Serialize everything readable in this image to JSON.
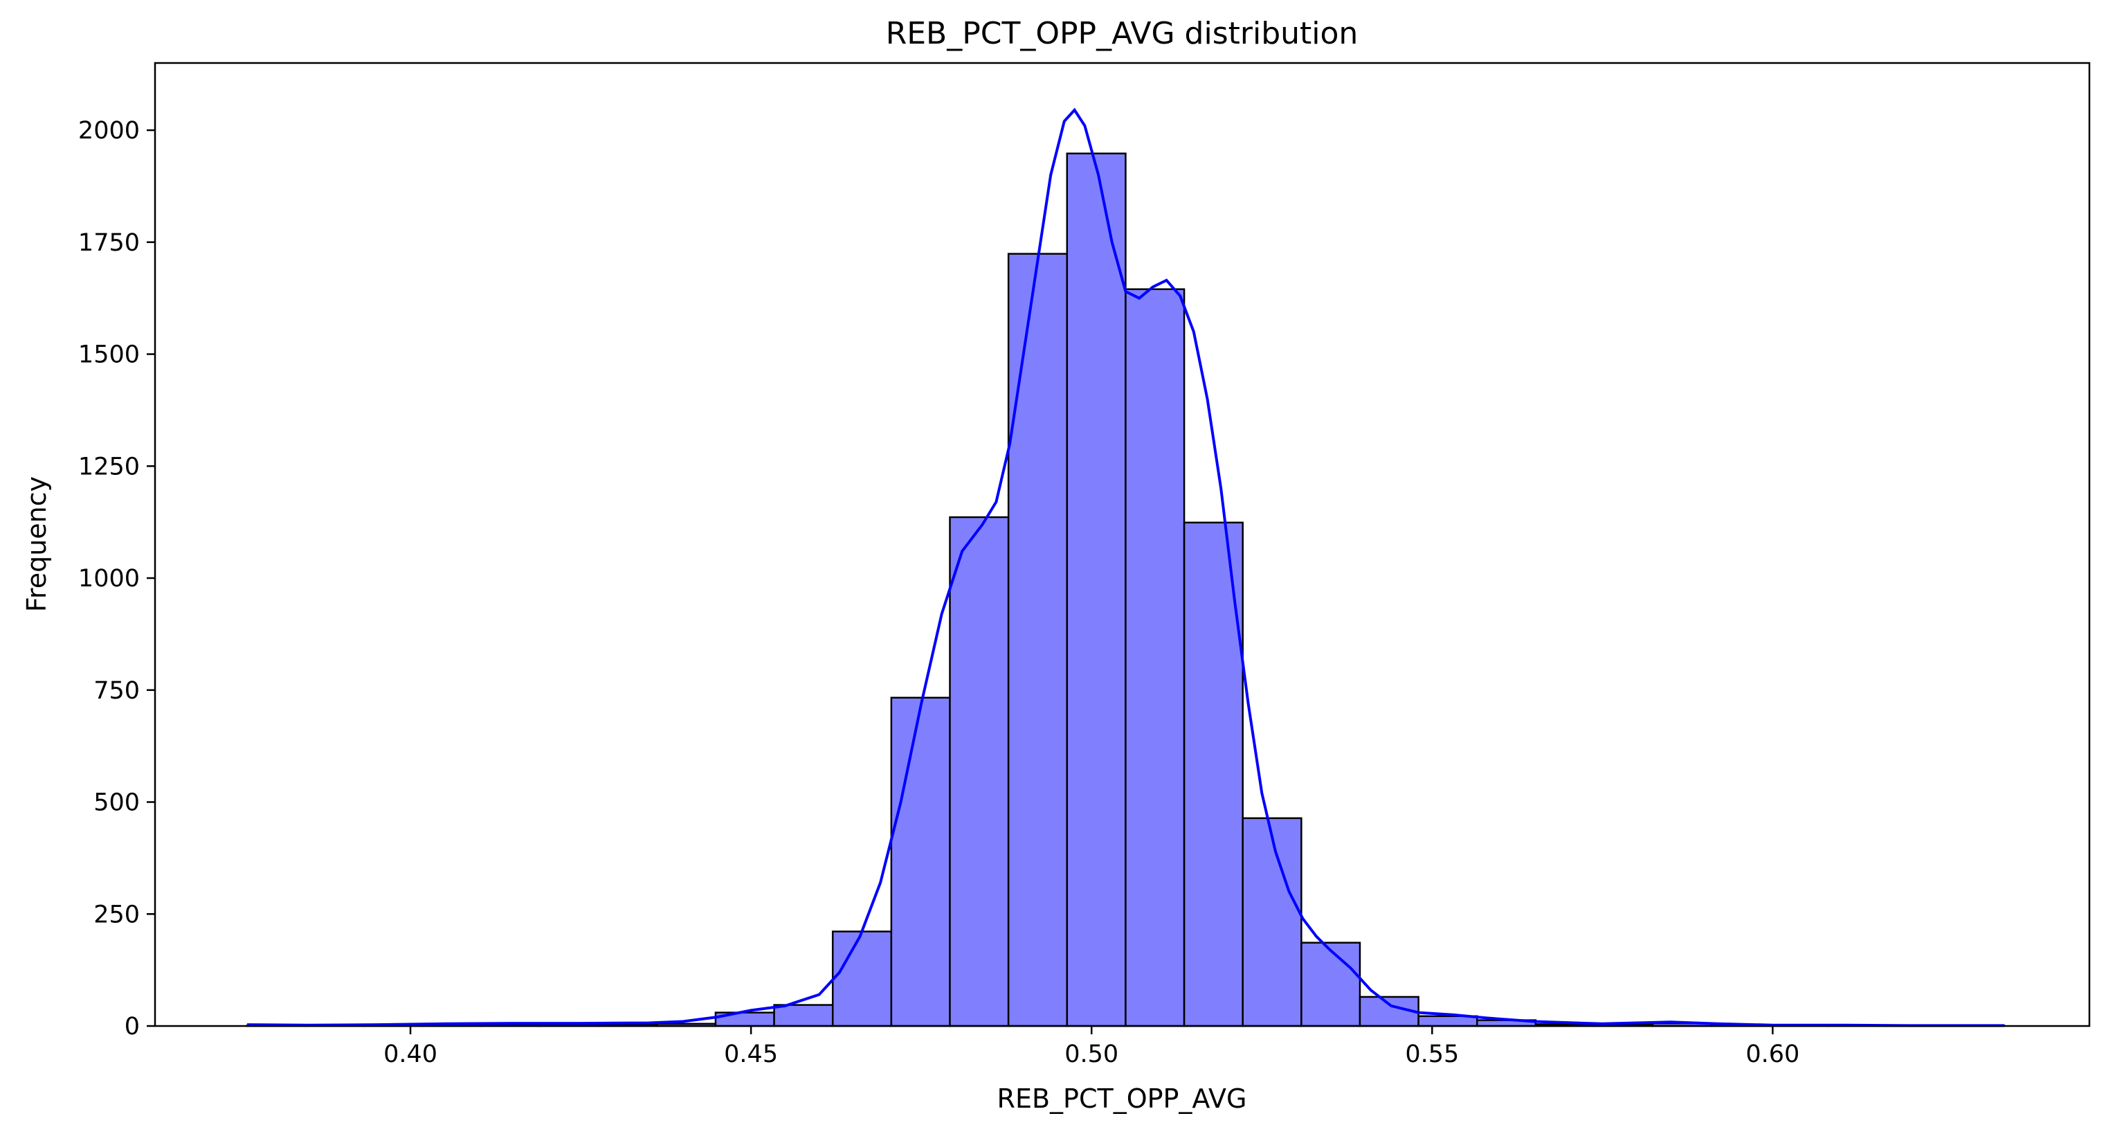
{
  "chart_data": {
    "type": "bar",
    "title": "REB_PCT_OPP_AVG distribution",
    "xlabel": "REB_PCT_OPP_AVG",
    "ylabel": "Frequency",
    "xlim": [
      0.3625,
      0.6465
    ],
    "ylim": [
      0,
      2150
    ],
    "xticks": [
      0.4,
      0.45,
      0.5,
      0.55,
      0.6
    ],
    "xtick_labels": [
      "0.40",
      "0.45",
      "0.50",
      "0.55",
      "0.60"
    ],
    "yticks": [
      0,
      250,
      500,
      750,
      1000,
      1250,
      1500,
      1750,
      2000
    ],
    "ytick_labels": [
      "0",
      "250",
      "500",
      "750",
      "1000",
      "1250",
      "1500",
      "1750",
      "2000"
    ],
    "bin_width": 0.0086,
    "bins": [
      {
        "x0": 0.376,
        "value": 1
      },
      {
        "x0": 0.3846,
        "value": 1
      },
      {
        "x0": 0.3932,
        "value": 1
      },
      {
        "x0": 0.4018,
        "value": 3
      },
      {
        "x0": 0.4104,
        "value": 3
      },
      {
        "x0": 0.419,
        "value": 4
      },
      {
        "x0": 0.4276,
        "value": 4
      },
      {
        "x0": 0.4362,
        "value": 5
      },
      {
        "x0": 0.4448,
        "value": 30
      },
      {
        "x0": 0.4534,
        "value": 47
      },
      {
        "x0": 0.462,
        "value": 211
      },
      {
        "x0": 0.4706,
        "value": 733
      },
      {
        "x0": 0.4792,
        "value": 1136
      },
      {
        "x0": 0.4878,
        "value": 1724
      },
      {
        "x0": 0.4964,
        "value": 1948
      },
      {
        "x0": 0.505,
        "value": 1645
      },
      {
        "x0": 0.5136,
        "value": 1124
      },
      {
        "x0": 0.5222,
        "value": 464
      },
      {
        "x0": 0.5308,
        "value": 186
      },
      {
        "x0": 0.5394,
        "value": 65
      },
      {
        "x0": 0.548,
        "value": 22
      },
      {
        "x0": 0.5566,
        "value": 13
      },
      {
        "x0": 0.5652,
        "value": 4
      },
      {
        "x0": 0.5738,
        "value": 3
      },
      {
        "x0": 0.5824,
        "value": 6
      },
      {
        "x0": 0.591,
        "value": 2
      },
      {
        "x0": 0.5996,
        "value": 1
      },
      {
        "x0": 0.6082,
        "value": 1
      },
      {
        "x0": 0.6168,
        "value": 1
      },
      {
        "x0": 0.6254,
        "value": 1
      }
    ],
    "kde": [
      [
        0.376,
        3
      ],
      [
        0.385,
        2
      ],
      [
        0.395,
        3
      ],
      [
        0.405,
        5
      ],
      [
        0.415,
        6
      ],
      [
        0.425,
        6
      ],
      [
        0.435,
        7
      ],
      [
        0.44,
        10
      ],
      [
        0.445,
        20
      ],
      [
        0.45,
        35
      ],
      [
        0.455,
        45
      ],
      [
        0.46,
        70
      ],
      [
        0.463,
        120
      ],
      [
        0.466,
        200
      ],
      [
        0.469,
        320
      ],
      [
        0.472,
        500
      ],
      [
        0.475,
        720
      ],
      [
        0.478,
        920
      ],
      [
        0.481,
        1060
      ],
      [
        0.484,
        1120
      ],
      [
        0.486,
        1170
      ],
      [
        0.488,
        1300
      ],
      [
        0.49,
        1500
      ],
      [
        0.492,
        1700
      ],
      [
        0.494,
        1900
      ],
      [
        0.496,
        2020
      ],
      [
        0.4975,
        2045
      ],
      [
        0.499,
        2010
      ],
      [
        0.501,
        1900
      ],
      [
        0.503,
        1750
      ],
      [
        0.505,
        1640
      ],
      [
        0.507,
        1625
      ],
      [
        0.509,
        1650
      ],
      [
        0.511,
        1665
      ],
      [
        0.513,
        1630
      ],
      [
        0.515,
        1550
      ],
      [
        0.517,
        1400
      ],
      [
        0.519,
        1200
      ],
      [
        0.521,
        950
      ],
      [
        0.523,
        720
      ],
      [
        0.525,
        520
      ],
      [
        0.527,
        390
      ],
      [
        0.529,
        300
      ],
      [
        0.531,
        240
      ],
      [
        0.533,
        200
      ],
      [
        0.535,
        170
      ],
      [
        0.538,
        130
      ],
      [
        0.541,
        80
      ],
      [
        0.544,
        45
      ],
      [
        0.548,
        30
      ],
      [
        0.553,
        25
      ],
      [
        0.558,
        18
      ],
      [
        0.565,
        10
      ],
      [
        0.575,
        5
      ],
      [
        0.585,
        9
      ],
      [
        0.592,
        5
      ],
      [
        0.6,
        2
      ],
      [
        0.61,
        2
      ],
      [
        0.62,
        1
      ],
      [
        0.634,
        1
      ]
    ],
    "colors": {
      "bar_fill": "#8080ff",
      "bar_edge": "#000000",
      "kde_line": "#0000ff"
    },
    "grid": false,
    "legend": "none"
  }
}
